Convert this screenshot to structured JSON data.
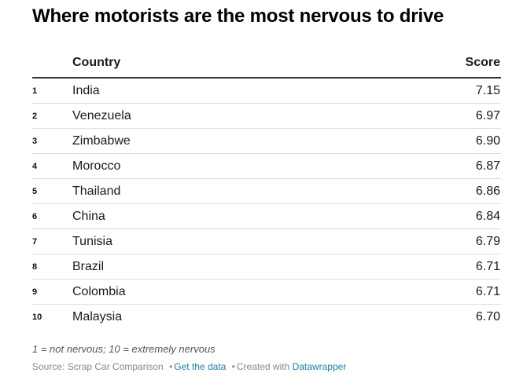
{
  "title": "Where motorists are the most nervous to drive",
  "chart_data": {
    "type": "table",
    "title": "Where motorists are the most nervous to drive",
    "columns": [
      "",
      "Country",
      "Score"
    ],
    "rows": [
      {
        "rank": "1",
        "country": "India",
        "score": "7.15"
      },
      {
        "rank": "2",
        "country": "Venezuela",
        "score": "6.97"
      },
      {
        "rank": "3",
        "country": "Zimbabwe",
        "score": "6.90"
      },
      {
        "rank": "4",
        "country": "Morocco",
        "score": "6.87"
      },
      {
        "rank": "5",
        "country": "Thailand",
        "score": "6.86"
      },
      {
        "rank": "6",
        "country": "China",
        "score": "6.84"
      },
      {
        "rank": "7",
        "country": "Tunisia",
        "score": "6.79"
      },
      {
        "rank": "8",
        "country": "Brazil",
        "score": "6.71"
      },
      {
        "rank": "9",
        "country": "Colombia",
        "score": "6.71"
      },
      {
        "rank": "10",
        "country": "Malaysia",
        "score": "6.70"
      }
    ]
  },
  "footnote": "1 = not nervous; 10 = extremely nervous",
  "footer": {
    "source_label": "Source: Scrap Car Comparison",
    "get_data_label": "Get the data",
    "created_with_label": "Created with",
    "datawrapper_label": "Datawrapper",
    "separator": "•"
  },
  "colors": {
    "link": "#1d81a2",
    "header_rule": "#333333",
    "row_rule": "#dddddd"
  }
}
